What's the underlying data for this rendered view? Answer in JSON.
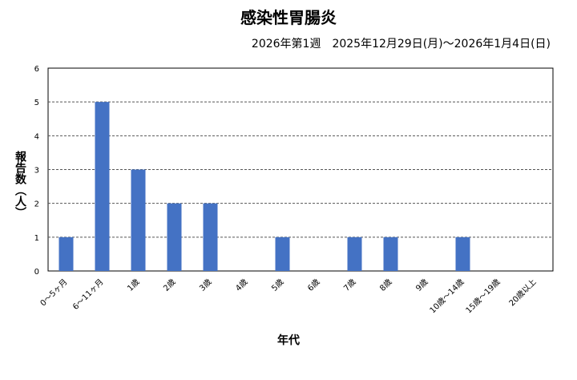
{
  "chart_data": {
    "type": "bar",
    "title": "感染性胃腸炎",
    "subtitle": "2026年第1週　2025年12月29日(月)～2026年1月4日(日)",
    "xlabel": "年代",
    "ylabel": "報告数（人）",
    "categories": [
      "0～5ヶ月",
      "6～11ヶ月",
      "1歳",
      "2歳",
      "3歳",
      "4歳",
      "5歳",
      "6歳",
      "7歳",
      "8歳",
      "9歳",
      "10歳～14歳",
      "15歳～19歳",
      "20歳以上"
    ],
    "values": [
      1,
      5,
      3,
      2,
      2,
      0,
      1,
      0,
      1,
      1,
      0,
      1,
      0,
      0
    ],
    "ylim": [
      0,
      6
    ],
    "yticks": [
      0,
      1,
      2,
      3,
      4,
      5,
      6
    ],
    "grid": true,
    "bar_color": "#4472c4"
  }
}
